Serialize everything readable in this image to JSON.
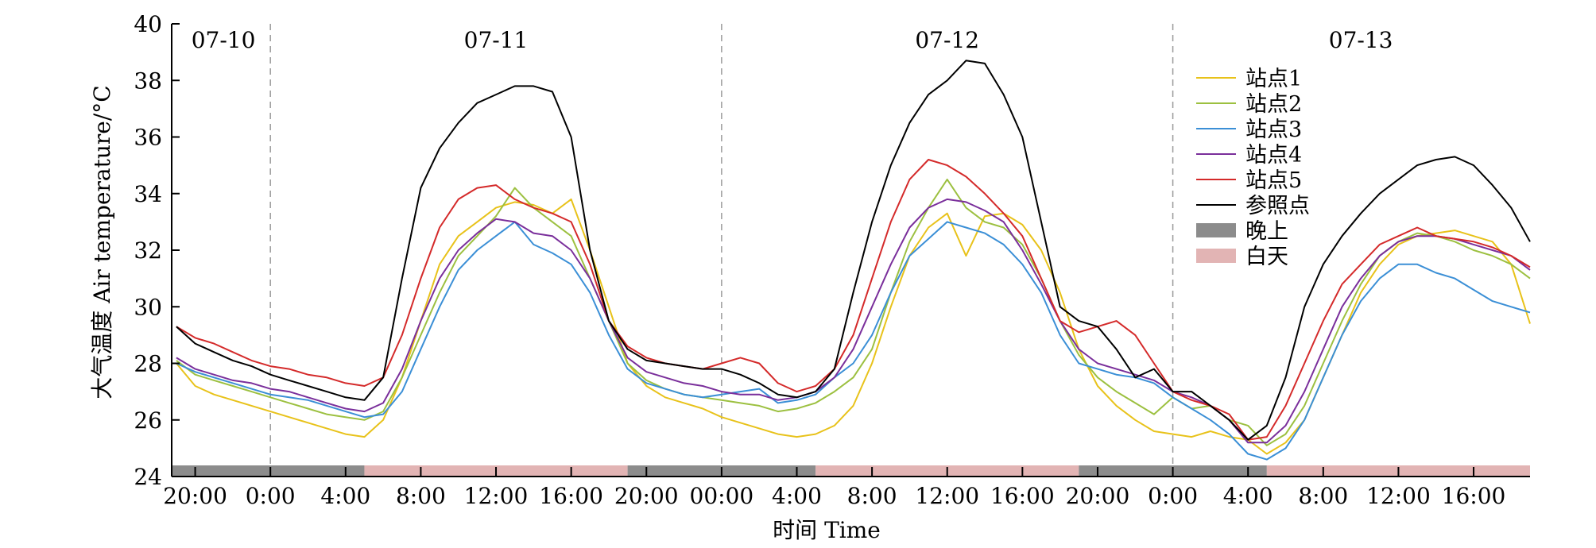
{
  "chart_data": {
    "type": "line",
    "title": "",
    "xlabel": "时间 Time",
    "ylabel": "大气温度 Air temperature/°C",
    "ylim": [
      24,
      40
    ],
    "yticks": [
      24,
      26,
      28,
      30,
      32,
      34,
      36,
      38,
      40
    ],
    "xunit": "hours since 07-10 0:00",
    "xlim": [
      18.75,
      91
    ],
    "x_tick_positions": [
      20,
      24,
      28,
      32,
      36,
      40,
      44,
      48,
      52,
      56,
      60,
      64,
      68,
      72,
      76,
      80,
      84,
      88
    ],
    "x_tick_labels": [
      "20:00",
      "0:00",
      "4:00",
      "8:00",
      "12:00",
      "16:00",
      "20:00",
      "00:00",
      "4:00",
      "8:00",
      "12:00",
      "16:00",
      "20:00",
      "0:00",
      "4:00",
      "8:00",
      "12:00",
      "16:00"
    ],
    "day_dividers": [
      24,
      48,
      72
    ],
    "day_labels": [
      {
        "text": "07-10",
        "x": 21.5
      },
      {
        "text": "07-11",
        "x": 36
      },
      {
        "text": "07-12",
        "x": 60
      },
      {
        "text": "07-13",
        "x": 82
      }
    ],
    "period_bar": [
      {
        "period": "night",
        "start": 18.75,
        "end": 29
      },
      {
        "period": "day",
        "start": 29,
        "end": 43
      },
      {
        "period": "night",
        "start": 43,
        "end": 53
      },
      {
        "period": "day",
        "start": 53,
        "end": 67
      },
      {
        "period": "night",
        "start": 67,
        "end": 77
      },
      {
        "period": "day",
        "start": 77,
        "end": 91
      }
    ],
    "period_colors": {
      "night": "#8c8c8c",
      "day": "#e2b4b4"
    },
    "legend": {
      "position": "top-right",
      "period_entries": [
        {
          "label": "晚上",
          "period": "night"
        },
        {
          "label": "白天",
          "period": "day"
        }
      ]
    },
    "x": [
      19,
      20,
      21,
      22,
      23,
      24,
      25,
      26,
      27,
      28,
      29,
      30,
      31,
      32,
      33,
      34,
      35,
      36,
      37,
      38,
      39,
      40,
      41,
      42,
      43,
      44,
      45,
      46,
      47,
      48,
      49,
      50,
      51,
      52,
      53,
      54,
      55,
      56,
      57,
      58,
      59,
      60,
      61,
      62,
      63,
      64,
      65,
      66,
      67,
      68,
      69,
      70,
      71,
      72,
      73,
      74,
      75,
      76,
      77,
      78,
      79,
      80,
      81,
      82,
      83,
      84,
      85,
      86,
      87,
      88,
      89,
      90,
      91
    ],
    "series": [
      {
        "name": "站点1",
        "color": "#e8c21a",
        "values": [
          28.0,
          27.2,
          26.9,
          26.7,
          26.5,
          26.3,
          26.1,
          25.9,
          25.7,
          25.5,
          25.4,
          26.0,
          27.5,
          29.5,
          31.5,
          32.5,
          33.0,
          33.5,
          33.7,
          33.6,
          33.3,
          33.8,
          32.0,
          30.0,
          28.0,
          27.2,
          26.8,
          26.6,
          26.4,
          26.1,
          25.9,
          25.7,
          25.5,
          25.4,
          25.5,
          25.8,
          26.5,
          28.0,
          30.0,
          31.8,
          32.8,
          33.3,
          31.8,
          33.2,
          33.3,
          32.9,
          32.0,
          30.5,
          28.5,
          27.2,
          26.5,
          26.0,
          25.6,
          25.5,
          25.4,
          25.6,
          25.4,
          25.3,
          24.8,
          25.2,
          26.0,
          27.5,
          29.0,
          30.5,
          31.5,
          32.2,
          32.5,
          32.6,
          32.7,
          32.5,
          32.3,
          31.5,
          29.4
        ]
      },
      {
        "name": "站点2",
        "color": "#9cc040",
        "values": [
          28.1,
          27.6,
          27.4,
          27.2,
          27.0,
          26.8,
          26.6,
          26.4,
          26.2,
          26.1,
          26.0,
          26.3,
          27.5,
          29.0,
          30.5,
          31.8,
          32.5,
          33.2,
          34.2,
          33.5,
          33.0,
          32.5,
          31.0,
          29.5,
          28.0,
          27.4,
          27.1,
          26.9,
          26.8,
          26.7,
          26.6,
          26.5,
          26.3,
          26.4,
          26.6,
          27.0,
          27.5,
          28.5,
          30.5,
          32.3,
          33.5,
          34.5,
          33.5,
          33.0,
          32.8,
          32.2,
          31.0,
          29.5,
          28.3,
          27.5,
          27.0,
          26.6,
          26.2,
          26.8,
          26.4,
          26.5,
          26.0,
          25.8,
          25.1,
          25.5,
          26.5,
          28.0,
          29.5,
          30.8,
          31.8,
          32.3,
          32.6,
          32.5,
          32.3,
          32.0,
          31.8,
          31.5,
          31.0
        ]
      },
      {
        "name": "站点3",
        "color": "#3b8fd6",
        "values": [
          28.0,
          27.7,
          27.5,
          27.3,
          27.1,
          26.9,
          26.8,
          26.7,
          26.5,
          26.3,
          26.1,
          26.2,
          27.0,
          28.5,
          30.0,
          31.3,
          32.0,
          32.5,
          33.0,
          32.2,
          31.9,
          31.5,
          30.5,
          29.0,
          27.8,
          27.3,
          27.1,
          26.9,
          26.8,
          26.9,
          27.0,
          27.1,
          26.6,
          26.7,
          26.9,
          27.5,
          28.0,
          29.0,
          30.5,
          31.8,
          32.4,
          33.0,
          32.8,
          32.6,
          32.2,
          31.5,
          30.5,
          29.0,
          28.0,
          27.8,
          27.6,
          27.5,
          27.3,
          26.8,
          26.4,
          26.0,
          25.5,
          24.8,
          24.6,
          25.0,
          26.0,
          27.5,
          29.0,
          30.2,
          31.0,
          31.5,
          31.5,
          31.2,
          31.0,
          30.6,
          30.2,
          30.0,
          29.8
        ]
      },
      {
        "name": "站点4",
        "color": "#7a2f9b",
        "values": [
          28.2,
          27.8,
          27.6,
          27.4,
          27.3,
          27.1,
          27.0,
          26.8,
          26.6,
          26.4,
          26.3,
          26.6,
          27.8,
          29.5,
          31.0,
          32.0,
          32.6,
          33.1,
          33.0,
          32.6,
          32.5,
          32.0,
          31.0,
          29.5,
          28.2,
          27.7,
          27.5,
          27.3,
          27.2,
          27.0,
          26.9,
          26.9,
          26.7,
          26.8,
          27.0,
          27.5,
          28.5,
          30.0,
          31.5,
          32.8,
          33.5,
          33.8,
          33.7,
          33.4,
          33.0,
          32.0,
          30.8,
          29.5,
          28.5,
          28.0,
          27.8,
          27.6,
          27.4,
          27.0,
          26.8,
          26.5,
          26.0,
          25.2,
          25.2,
          25.8,
          27.0,
          28.5,
          30.0,
          31.0,
          31.8,
          32.3,
          32.5,
          32.5,
          32.4,
          32.2,
          32.0,
          31.8,
          31.3
        ]
      },
      {
        "name": "站点5",
        "color": "#d42a2a",
        "values": [
          29.3,
          28.9,
          28.7,
          28.4,
          28.1,
          27.9,
          27.8,
          27.6,
          27.5,
          27.3,
          27.2,
          27.5,
          29.0,
          31.0,
          32.8,
          33.8,
          34.2,
          34.3,
          33.8,
          33.5,
          33.3,
          33.0,
          31.5,
          29.5,
          28.6,
          28.2,
          28.0,
          27.9,
          27.8,
          28.0,
          28.2,
          28.0,
          27.3,
          27.0,
          27.2,
          27.8,
          29.0,
          31.0,
          33.0,
          34.5,
          35.2,
          35.0,
          34.6,
          34.0,
          33.3,
          32.5,
          31.0,
          29.5,
          29.1,
          29.3,
          29.5,
          29.0,
          28.0,
          27.0,
          26.7,
          26.5,
          26.2,
          25.3,
          25.4,
          26.5,
          28.0,
          29.5,
          30.8,
          31.5,
          32.2,
          32.5,
          32.8,
          32.5,
          32.4,
          32.3,
          32.1,
          31.8,
          31.4
        ]
      },
      {
        "name": "参照点",
        "color": "#000000",
        "values": [
          29.3,
          28.7,
          28.4,
          28.1,
          27.9,
          27.6,
          27.4,
          27.2,
          27.0,
          26.8,
          26.7,
          27.5,
          31.0,
          34.2,
          35.6,
          36.5,
          37.2,
          37.5,
          37.8,
          37.8,
          37.6,
          36.0,
          32.0,
          29.5,
          28.5,
          28.1,
          28.0,
          27.9,
          27.8,
          27.8,
          27.6,
          27.3,
          26.9,
          26.8,
          27.0,
          27.8,
          30.5,
          33.0,
          35.0,
          36.5,
          37.5,
          38.0,
          38.7,
          38.6,
          37.5,
          36.0,
          33.0,
          30.0,
          29.5,
          29.3,
          28.5,
          27.5,
          27.8,
          27.0,
          27.0,
          26.5,
          26.0,
          25.3,
          25.8,
          27.5,
          30.0,
          31.5,
          32.5,
          33.3,
          34.0,
          34.5,
          35.0,
          35.2,
          35.3,
          35.0,
          34.3,
          33.5,
          32.3
        ]
      }
    ]
  }
}
